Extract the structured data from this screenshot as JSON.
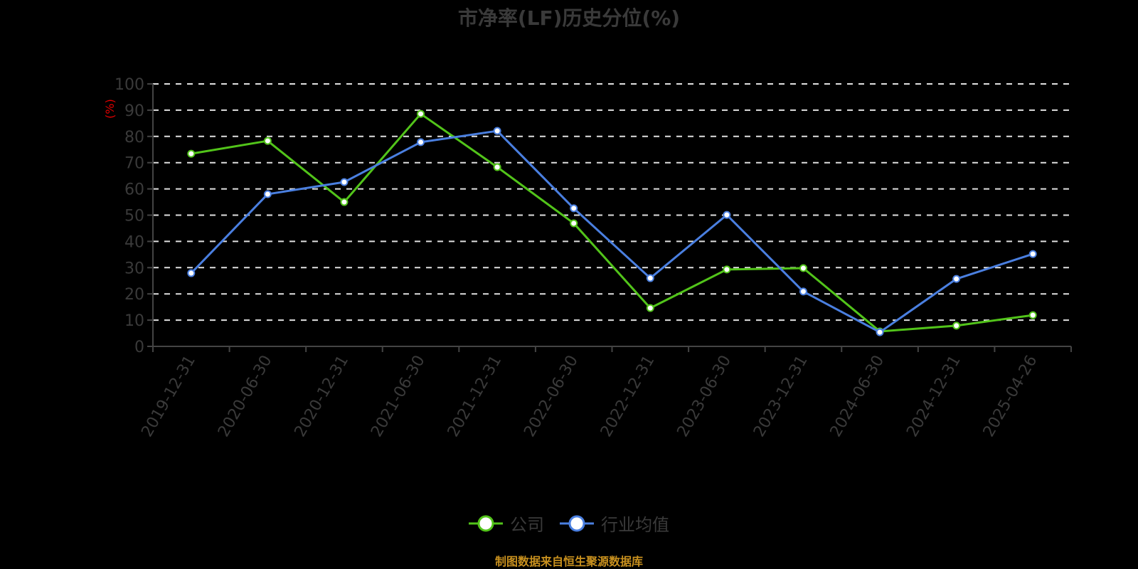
{
  "title": "市净率(LF)历史分位(%)",
  "y_unit_label": "(%)",
  "footer": "制图数据来自恒生聚源数据库",
  "legend": [
    {
      "label": "公司",
      "color": "#52c41a"
    },
    {
      "label": "行业均值",
      "color": "#4a7fe0"
    }
  ],
  "chart_data": {
    "type": "line",
    "title": "市净率(LF)历史分位(%)",
    "xlabel": "",
    "ylabel": "(%)",
    "ylim": [
      0,
      100
    ],
    "yticks": [
      0,
      10,
      20,
      30,
      40,
      50,
      60,
      70,
      80,
      90,
      100
    ],
    "grid": "horizontal dashed",
    "legend_position": "bottom",
    "categories": [
      "2019-12-31",
      "2020-06-30",
      "2020-12-31",
      "2021-06-30",
      "2021-12-31",
      "2022-06-30",
      "2022-12-31",
      "2023-06-30",
      "2023-12-31",
      "2024-06-30",
      "2024-12-31",
      "2025-04-26"
    ],
    "series": [
      {
        "name": "公司",
        "color": "#52c41a",
        "values": [
          73.4,
          78.3,
          55.0,
          88.6,
          68.3,
          46.9,
          14.6,
          29.3,
          29.8,
          5.7,
          7.9,
          11.9
        ]
      },
      {
        "name": "行业均值",
        "color": "#4a7fe0",
        "values": [
          27.9,
          58.0,
          62.6,
          77.8,
          82.1,
          52.6,
          26.0,
          50.1,
          20.9,
          5.4,
          25.7,
          35.2
        ]
      }
    ]
  }
}
